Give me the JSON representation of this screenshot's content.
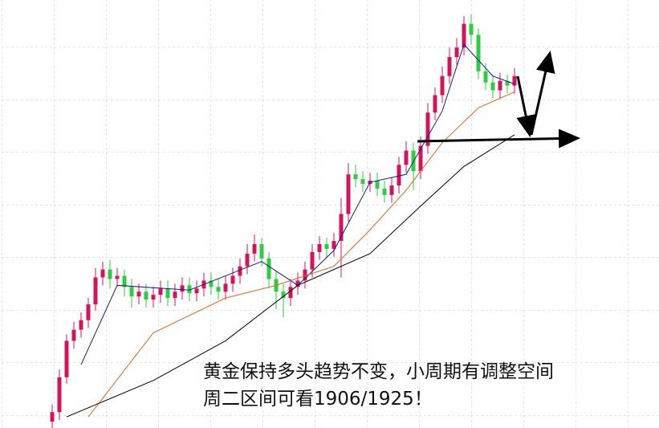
{
  "chart_data": {
    "type": "candlestick",
    "xlim": [
      0,
      66
    ],
    "ylim": [
      1690,
      1960
    ],
    "up_color": "#d4145a",
    "down_color": "#2ecc40",
    "open": [
      1694,
      1700,
      1722,
      1745,
      1752,
      1758,
      1768,
      1785,
      1790,
      1784,
      1786,
      1779,
      1773,
      1776,
      1771,
      1774,
      1778,
      1772,
      1776,
      1780,
      1775,
      1778,
      1783,
      1779,
      1776,
      1781,
      1786,
      1792,
      1800,
      1806,
      1797,
      1784,
      1776,
      1772,
      1779,
      1783,
      1790,
      1801,
      1806,
      1803,
      1808,
      1825,
      1850,
      1847,
      1844,
      1846,
      1841,
      1837,
      1843,
      1856,
      1865,
      1852,
      1868,
      1889,
      1900,
      1912,
      1924,
      1930,
      1945,
      1938,
      1915,
      1908,
      1903,
      1909,
      1906
    ],
    "high": [
      1705,
      1727,
      1749,
      1757,
      1763,
      1772,
      1791,
      1795,
      1796,
      1791,
      1790,
      1784,
      1781,
      1781,
      1779,
      1783,
      1783,
      1781,
      1785,
      1785,
      1783,
      1788,
      1788,
      1784,
      1786,
      1791,
      1797,
      1806,
      1812,
      1810,
      1801,
      1789,
      1781,
      1784,
      1788,
      1795,
      1806,
      1811,
      1810,
      1813,
      1835,
      1857,
      1856,
      1852,
      1851,
      1851,
      1846,
      1848,
      1861,
      1871,
      1870,
      1874,
      1895,
      1905,
      1918,
      1930,
      1936,
      1950,
      1951,
      1942,
      1920,
      1913,
      1914,
      1913,
      1917
    ],
    "low": [
      1689,
      1695,
      1718,
      1740,
      1747,
      1753,
      1764,
      1780,
      1778,
      1779,
      1773,
      1766,
      1768,
      1766,
      1766,
      1769,
      1767,
      1767,
      1771,
      1770,
      1770,
      1773,
      1774,
      1771,
      1771,
      1776,
      1781,
      1787,
      1795,
      1792,
      1778,
      1765,
      1760,
      1767,
      1774,
      1778,
      1785,
      1796,
      1798,
      1798,
      1785,
      1820,
      1842,
      1839,
      1839,
      1836,
      1832,
      1832,
      1838,
      1851,
      1840,
      1847,
      1863,
      1884,
      1895,
      1907,
      1919,
      1925,
      1932,
      1910,
      1903,
      1898,
      1898,
      1901,
      1901
    ],
    "close": [
      1700,
      1722,
      1745,
      1752,
      1758,
      1768,
      1785,
      1790,
      1784,
      1786,
      1779,
      1773,
      1776,
      1771,
      1774,
      1778,
      1772,
      1776,
      1780,
      1775,
      1778,
      1783,
      1779,
      1776,
      1781,
      1786,
      1792,
      1800,
      1806,
      1797,
      1784,
      1776,
      1772,
      1779,
      1783,
      1790,
      1801,
      1806,
      1803,
      1808,
      1825,
      1850,
      1847,
      1844,
      1846,
      1841,
      1837,
      1843,
      1856,
      1865,
      1852,
      1868,
      1889,
      1900,
      1912,
      1924,
      1930,
      1945,
      1938,
      1915,
      1908,
      1903,
      1909,
      1906,
      1912
    ],
    "series": [
      {
        "color": "#1a1a8c",
        "x": [
          5,
          10,
          20,
          30,
          35,
          40,
          45,
          50,
          55,
          58,
          62,
          65
        ],
        "values": [
          1730,
          1780,
          1777,
          1795,
          1780,
          1802,
          1845,
          1850,
          1890,
          1932,
          1912,
          1907
        ]
      },
      {
        "color": "#e8641e",
        "x": [
          6,
          15,
          25,
          32,
          40,
          45,
          50,
          55,
          60,
          65
        ],
        "values": [
          1697,
          1750,
          1772,
          1780,
          1792,
          1815,
          1840,
          1870,
          1892,
          1902
        ]
      },
      {
        "color": "#000000",
        "x": [
          3,
          15,
          25,
          35,
          45,
          52,
          58,
          65
        ],
        "values": [
          1697,
          1720,
          1745,
          1780,
          1800,
          1830,
          1855,
          1875
        ]
      }
    ],
    "annotations": [
      "黄金保持多头趋势不变，小周期有调整空间",
      "周二区间可看1906/1925！"
    ]
  }
}
